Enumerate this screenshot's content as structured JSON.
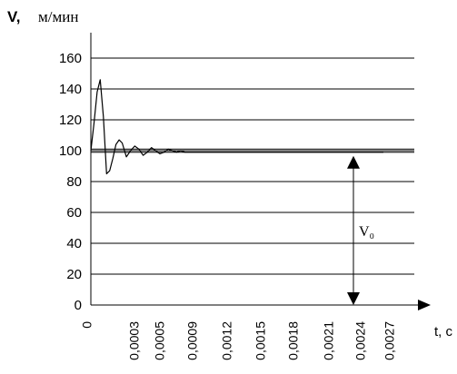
{
  "chart_data": {
    "type": "line",
    "ylabel_symbol": "V,",
    "ylabel_unit": "м/мин",
    "xlabel": "t, c",
    "ylim": [
      0,
      160
    ],
    "y_ticks": [
      "0",
      "20",
      "40",
      "60",
      "80",
      "100",
      "120",
      "140",
      "160"
    ],
    "x_tick_labels": [
      "0",
      "0,0003",
      "0,0005",
      "0,0009",
      "0,0012",
      "0,0015",
      "0,0018",
      "0,0021",
      "0,0024",
      "0,0027"
    ],
    "grid": true,
    "series": [
      {
        "x": [
          0,
          3e-05,
          6e-05,
          9e-05,
          0.00012,
          0.00015,
          0.00018,
          0.00021,
          0.00024,
          0.00027,
          0.0003,
          0.00034,
          0.00038,
          0.00042,
          0.00046,
          0.0005,
          0.00054,
          0.00058,
          0.00062,
          0.00066,
          0.0007,
          0.00074,
          0.00078,
          0.00082,
          0.00086,
          0.0009,
          0.00095,
          0.001,
          0.0015,
          0.002,
          0.0025,
          0.0028
        ],
        "y": [
          100,
          118,
          138,
          146,
          122,
          85,
          87,
          95,
          104,
          107,
          105,
          96,
          100,
          103,
          101,
          97,
          99,
          102,
          100,
          98,
          99,
          101,
          100,
          99,
          100,
          99,
          99,
          99,
          99,
          99,
          99,
          99
        ]
      }
    ],
    "reference_lines": [
      101,
      99
    ],
    "annotations": [
      {
        "text": "V₀",
        "target_value": 99
      }
    ]
  }
}
